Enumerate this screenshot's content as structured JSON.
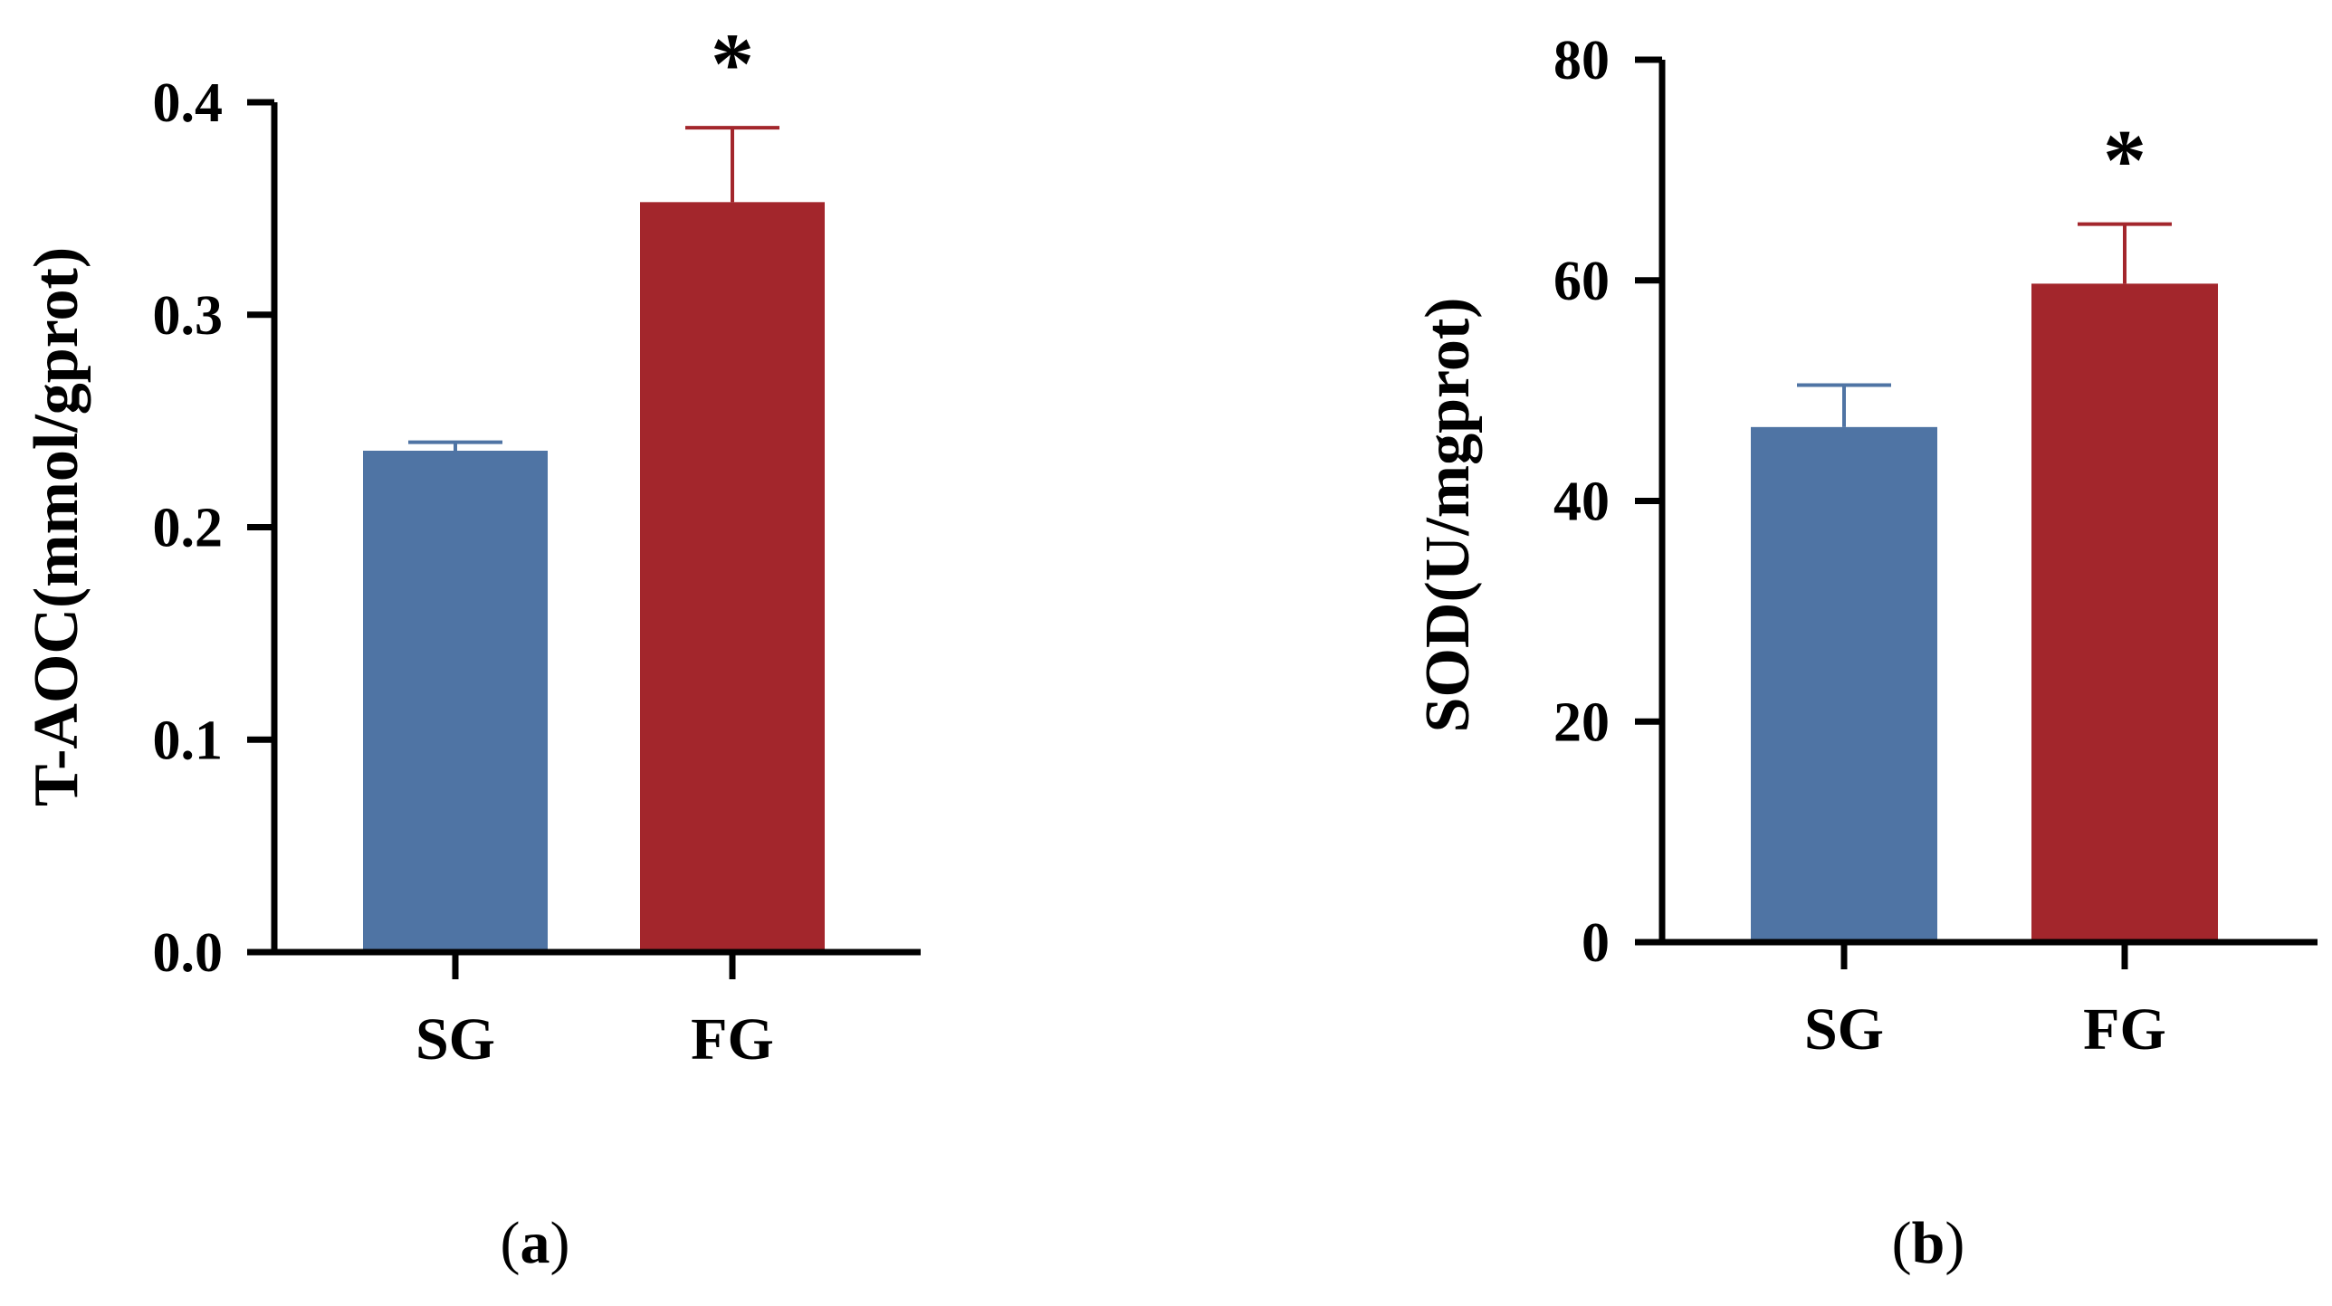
{
  "chart_data": [
    {
      "type": "bar",
      "panel_label_open": "(",
      "panel_label_letter": "a",
      "panel_label_close": ")",
      "ylabel": "T-AOC(mmol/gprot)",
      "xlabel": "",
      "categories": [
        "SG",
        "FG"
      ],
      "values": [
        0.236,
        0.353
      ],
      "errors": [
        0.004,
        0.035
      ],
      "significance": [
        "",
        "*"
      ],
      "colors": [
        "#4f74a4",
        "#a3262c"
      ],
      "ylim": [
        0,
        0.4
      ],
      "yticks": [
        0.0,
        0.1,
        0.2,
        0.3,
        0.4
      ],
      "ytick_labels": [
        "0.0",
        "0.1",
        "0.2",
        "0.3",
        "0.4"
      ],
      "grid": false
    },
    {
      "type": "bar",
      "panel_label_open": "(",
      "panel_label_letter": "b",
      "panel_label_close": ")",
      "ylabel": "SOD(U/mgprot)",
      "xlabel": "",
      "categories": [
        "SG",
        "FG"
      ],
      "values": [
        46.7,
        59.7
      ],
      "errors": [
        3.8,
        5.4
      ],
      "significance": [
        "",
        "*"
      ],
      "colors": [
        "#4f74a4",
        "#a3262c"
      ],
      "ylim": [
        0,
        80
      ],
      "yticks": [
        0,
        20,
        40,
        60,
        80
      ],
      "ytick_labels": [
        "0",
        "20",
        "40",
        "60",
        "80"
      ],
      "grid": false
    }
  ]
}
